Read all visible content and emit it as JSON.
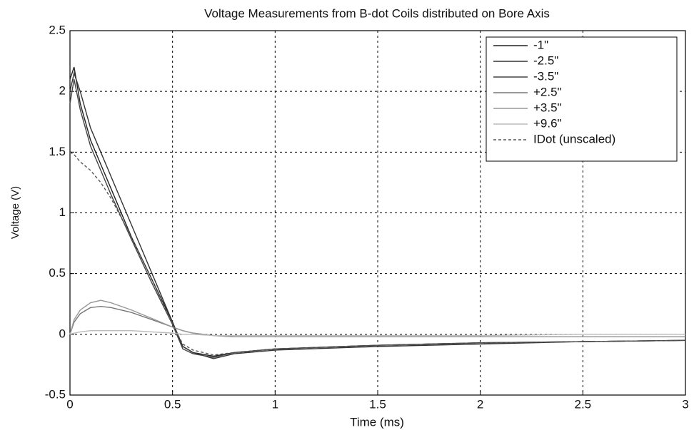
{
  "chart_data": {
    "type": "line",
    "title": "Voltage Measurements from B-dot Coils  distributed on Bore Axis",
    "xlabel": "Time (ms)",
    "ylabel": "Voltage (V)",
    "x": [
      0,
      0.02,
      0.05,
      0.1,
      0.15,
      0.2,
      0.3,
      0.4,
      0.5,
      0.55,
      0.6,
      0.7,
      0.8,
      1,
      1.5,
      2,
      2.5,
      3
    ],
    "series": [
      {
        "name": "-1\"",
        "color": "#222222",
        "dash": false,
        "values": [
          2.1,
          2.2,
          1.9,
          1.6,
          1.4,
          1.2,
          0.8,
          0.45,
          0.1,
          -0.1,
          -0.15,
          -0.18,
          -0.15,
          -0.12,
          -0.09,
          -0.07,
          -0.06,
          -0.05
        ]
      },
      {
        "name": "-2.5\"",
        "color": "#333333",
        "dash": false,
        "values": [
          2.0,
          2.15,
          2.0,
          1.7,
          1.5,
          1.3,
          0.9,
          0.5,
          0.1,
          -0.1,
          -0.15,
          -0.2,
          -0.16,
          -0.13,
          -0.1,
          -0.08,
          -0.06,
          -0.05
        ]
      },
      {
        "name": "-3.5\"",
        "color": "#444444",
        "dash": false,
        "values": [
          1.9,
          2.1,
          1.85,
          1.55,
          1.35,
          1.15,
          0.78,
          0.42,
          0.08,
          -0.12,
          -0.16,
          -0.19,
          -0.15,
          -0.12,
          -0.09,
          -0.07,
          -0.06,
          -0.05
        ]
      },
      {
        "name": "+2.5\"",
        "color": "#777777",
        "dash": false,
        "values": [
          0,
          0.1,
          0.17,
          0.22,
          0.23,
          0.22,
          0.18,
          0.12,
          0.06,
          0.03,
          0.01,
          -0.01,
          -0.02,
          -0.02,
          -0.02,
          -0.02,
          -0.02,
          -0.02
        ]
      },
      {
        "name": "+3.5\"",
        "color": "#999999",
        "dash": false,
        "values": [
          0,
          0.12,
          0.2,
          0.26,
          0.28,
          0.26,
          0.2,
          0.13,
          0.06,
          0.03,
          0.01,
          -0.01,
          -0.02,
          -0.02,
          -0.02,
          -0.02,
          -0.02,
          -0.02
        ]
      },
      {
        "name": "+9.6\"",
        "color": "#bbbbbb",
        "dash": false,
        "values": [
          0,
          0.01,
          0.02,
          0.03,
          0.03,
          0.03,
          0.03,
          0.02,
          0.01,
          0,
          0,
          -0.01,
          -0.01,
          -0.01,
          -0.01,
          -0.01,
          0,
          0
        ]
      },
      {
        "name": "IDot (unscaled)",
        "color": "#555555",
        "dash": true,
        "values": [
          1.5,
          1.48,
          1.42,
          1.35,
          1.25,
          1.12,
          0.8,
          0.45,
          0.08,
          -0.08,
          -0.13,
          -0.17,
          -0.15,
          -0.12,
          -0.09,
          -0.07,
          -0.06,
          -0.05
        ]
      }
    ],
    "xlim": [
      0,
      3
    ],
    "xticks": [
      0,
      0.5,
      1,
      1.5,
      2,
      2.5,
      3
    ],
    "ylim": [
      -0.5,
      2.5
    ],
    "yticks": [
      -0.5,
      0,
      0.5,
      1,
      1.5,
      2,
      2.5
    ],
    "grid": true,
    "legend": "upper right"
  }
}
